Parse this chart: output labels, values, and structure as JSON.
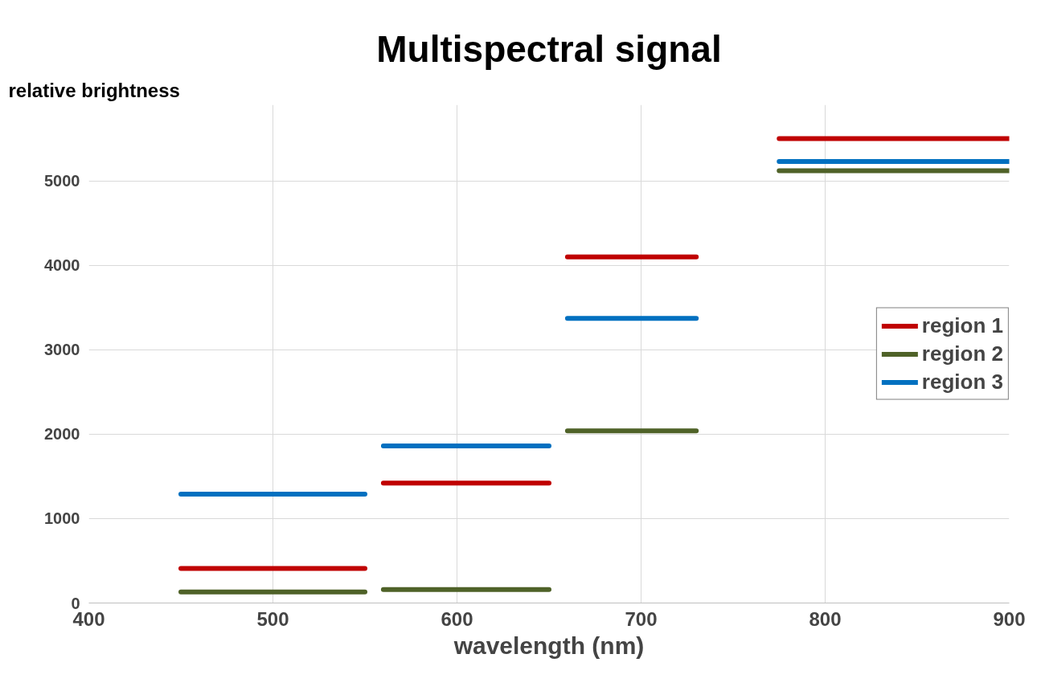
{
  "chart_data": {
    "type": "line",
    "title": "Multispectral signal",
    "xlabel": "wavelength (nm)",
    "ylabel": "relative brightness",
    "xlim": [
      400,
      900
    ],
    "xticks": [
      400,
      500,
      600,
      700,
      800,
      900
    ],
    "ylim": [
      0,
      5900
    ],
    "yticks": [
      0,
      1000,
      2000,
      3000,
      4000,
      5000
    ],
    "grid": true,
    "legend": "right",
    "line_style": "solid",
    "marker": "none",
    "series": [
      {
        "name": "region 1",
        "color": "#c00000",
        "x": [
          450,
          550,
          null,
          560,
          650,
          null,
          660,
          730,
          null,
          775,
          900
        ],
        "values": [
          410,
          410,
          null,
          1420,
          1420,
          null,
          4100,
          4100,
          null,
          5500,
          5500
        ]
      },
      {
        "name": "region 2",
        "color": "#4f6228",
        "x": [
          450,
          550,
          null,
          560,
          650,
          null,
          660,
          730,
          null,
          775,
          900
        ],
        "values": [
          130,
          130,
          null,
          160,
          160,
          null,
          2040,
          2040,
          null,
          5120,
          5120
        ]
      },
      {
        "name": "region 3",
        "color": "#0070c0",
        "x": [
          450,
          550,
          null,
          560,
          650,
          null,
          660,
          730,
          null,
          775,
          900
        ],
        "values": [
          1290,
          1290,
          null,
          1860,
          1860,
          null,
          3370,
          3370,
          null,
          5230,
          5230
        ]
      }
    ]
  }
}
